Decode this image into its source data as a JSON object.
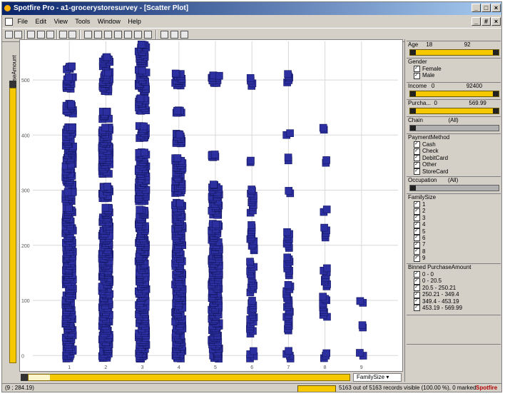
{
  "window": {
    "title": "Spotfire Pro - a1-grocerystoresurvey - [Scatter Plot]",
    "controls": [
      "_",
      "□",
      "×"
    ],
    "child_controls": [
      "_",
      "#",
      "×"
    ]
  },
  "menu": [
    "File",
    "Edit",
    "View",
    "Tools",
    "Window",
    "Help"
  ],
  "plot": {
    "y_axis_label": "PurchaseAmount",
    "x_axis_selector": "FamilySize",
    "y_ticks": [
      "500",
      "400",
      "300",
      "200",
      "100",
      "0"
    ],
    "x_ticks": [
      "1",
      "2",
      "3",
      "4",
      "5",
      "6",
      "7",
      "8",
      "9"
    ]
  },
  "chart_data": {
    "type": "scatter",
    "xlabel": "FamilySize",
    "ylabel": "PurchaseAmount",
    "ylim": [
      -10,
      570
    ],
    "xlim": [
      0,
      10
    ],
    "grid": true,
    "marker_color": "#2b2fa0",
    "columns": [
      {
        "x": 1,
        "ranges": [
          [
            -5,
            270
          ],
          [
            280,
            300
          ],
          [
            310,
            350
          ],
          [
            355,
            415
          ],
          [
            440,
            460
          ],
          [
            485,
            510
          ],
          [
            520,
            525
          ]
        ]
      },
      {
        "x": 2,
        "ranges": [
          [
            -5,
            270
          ],
          [
            285,
            310
          ],
          [
            330,
            415
          ],
          [
            430,
            445
          ],
          [
            480,
            515
          ],
          [
            525,
            545
          ]
        ]
      },
      {
        "x": 3,
        "ranges": [
          [
            -5,
            265
          ],
          [
            280,
            370
          ],
          [
            395,
            420
          ],
          [
            445,
            470
          ],
          [
            480,
            520
          ],
          [
            530,
            565
          ]
        ]
      },
      {
        "x": 4,
        "ranges": [
          [
            -5,
            280
          ],
          [
            295,
            360
          ],
          [
            385,
            405
          ],
          [
            440,
            445
          ],
          [
            490,
            515
          ]
        ]
      },
      {
        "x": 5,
        "ranges": [
          [
            -5,
            240
          ],
          [
            255,
            310
          ],
          [
            360,
            365
          ],
          [
            495,
            510
          ]
        ]
      },
      {
        "x": 6,
        "ranges": [
          [
            -5,
            10
          ],
          [
            40,
            100
          ],
          [
            115,
            170
          ],
          [
            190,
            240
          ],
          [
            260,
            305
          ],
          [
            350,
            355
          ],
          [
            490,
            505
          ]
        ]
      },
      {
        "x": 7,
        "ranges": [
          [
            -5,
            10
          ],
          [
            45,
            130
          ],
          [
            145,
            180
          ],
          [
            195,
            225
          ],
          [
            295,
            300
          ],
          [
            355,
            360
          ],
          [
            400,
            405
          ],
          [
            495,
            515
          ]
        ]
      },
      {
        "x": 8,
        "ranges": [
          [
            -5,
            5
          ],
          [
            70,
            110
          ],
          [
            125,
            160
          ],
          [
            215,
            235
          ],
          [
            260,
            265
          ],
          [
            350,
            355
          ],
          [
            410,
            415
          ]
        ]
      },
      {
        "x": 9,
        "ranges": [
          [
            0,
            5
          ],
          [
            50,
            55
          ],
          [
            95,
            100
          ]
        ]
      }
    ]
  },
  "filters": {
    "age": {
      "label": "Age",
      "min": "18",
      "max": "92"
    },
    "gender": {
      "label": "Gender",
      "options": [
        "Female",
        "Male"
      ]
    },
    "income": {
      "label": "Income",
      "min": "0",
      "max": "92400"
    },
    "purchase": {
      "label": "Purcha...",
      "min": "0",
      "max": "569.99"
    },
    "chain": {
      "label": "Chain",
      "value": "(All)"
    },
    "payment": {
      "label": "PaymentMethod",
      "options": [
        "Cash",
        "Check",
        "DebitCard",
        "Other",
        "StoreCard"
      ]
    },
    "occupation": {
      "label": "Occupation",
      "value": "(All)"
    },
    "family": {
      "label": "FamilySize",
      "options": [
        "1",
        "2",
        "3",
        "4",
        "5",
        "6",
        "7",
        "8",
        "9"
      ]
    },
    "binned": {
      "label": "Binned PurchaseAmount",
      "options": [
        "0 - 0",
        "0 - 20.5",
        "20.5 - 250.21",
        "250.21 - 349.4",
        "349.4 - 453.19",
        "453.19 - 569.99"
      ]
    }
  },
  "status": {
    "coord": "(9 ; 284.19)",
    "progress": 1.0,
    "records": "5163 out of 5163 records visible (100.00 %), 0 marked",
    "logo": "Spotfire"
  }
}
